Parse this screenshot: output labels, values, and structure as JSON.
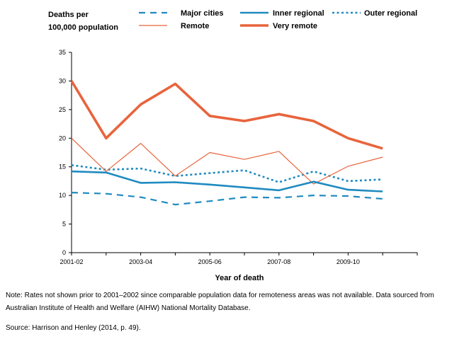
{
  "chart_data": {
    "type": "line",
    "ylabel": [
      "Deaths per",
      "100,000 population"
    ],
    "xlabel": "Year of death",
    "ylim": [
      0,
      35
    ],
    "yticks": [
      "0",
      "5",
      "10",
      "15",
      "20",
      "25",
      "30",
      "35"
    ],
    "xtick_labels": [
      "2001-02",
      "2003-04",
      "2005-06",
      "2007-08",
      "2009-10"
    ],
    "x": [
      "2001-02",
      "2002-03",
      "2003-04",
      "2004-05",
      "2005-06",
      "2006-07",
      "2007-08",
      "2008-09",
      "2009-10",
      "2010-11"
    ],
    "series": [
      {
        "name": "Major cities",
        "color": "#1f8bc0",
        "style": "dashed",
        "values": [
          10.5,
          10.3,
          9.7,
          8.4,
          9.0,
          9.7,
          9.6,
          10.0,
          9.9,
          9.4
        ]
      },
      {
        "name": "Inner regional",
        "color": "#1f8bc0",
        "style": "solid-thick",
        "values": [
          14.2,
          14.0,
          12.2,
          12.3,
          11.9,
          11.4,
          10.9,
          12.4,
          11.0,
          10.7
        ]
      },
      {
        "name": "Outer regional",
        "color": "#1f8bc0",
        "style": "dotted",
        "values": [
          15.3,
          14.5,
          14.7,
          13.4,
          13.9,
          14.4,
          12.3,
          14.2,
          12.5,
          12.8
        ]
      },
      {
        "name": "Remote",
        "color": "#e8643c",
        "style": "solid-thin",
        "values": [
          20.0,
          14.2,
          19.1,
          13.4,
          17.5,
          16.3,
          17.7,
          12.0,
          15.1,
          16.7
        ]
      },
      {
        "name": "Very remote",
        "color": "#e8643c",
        "style": "solid-extra-thick",
        "values": [
          30.0,
          20.0,
          25.9,
          29.5,
          23.9,
          23.0,
          24.2,
          23.0,
          20.0,
          18.2
        ]
      }
    ],
    "legend_position": "top",
    "grid": false
  },
  "notes": {
    "note": "Note: Rates not shown prior to 2001–2002 since comparable population data for remoteness areas was not available. Data sourced from Australian Institute of Health and Welfare (AIHW) National Mortality Database.",
    "source": "Source: Harrison and Henley (2014, p. 49)."
  }
}
